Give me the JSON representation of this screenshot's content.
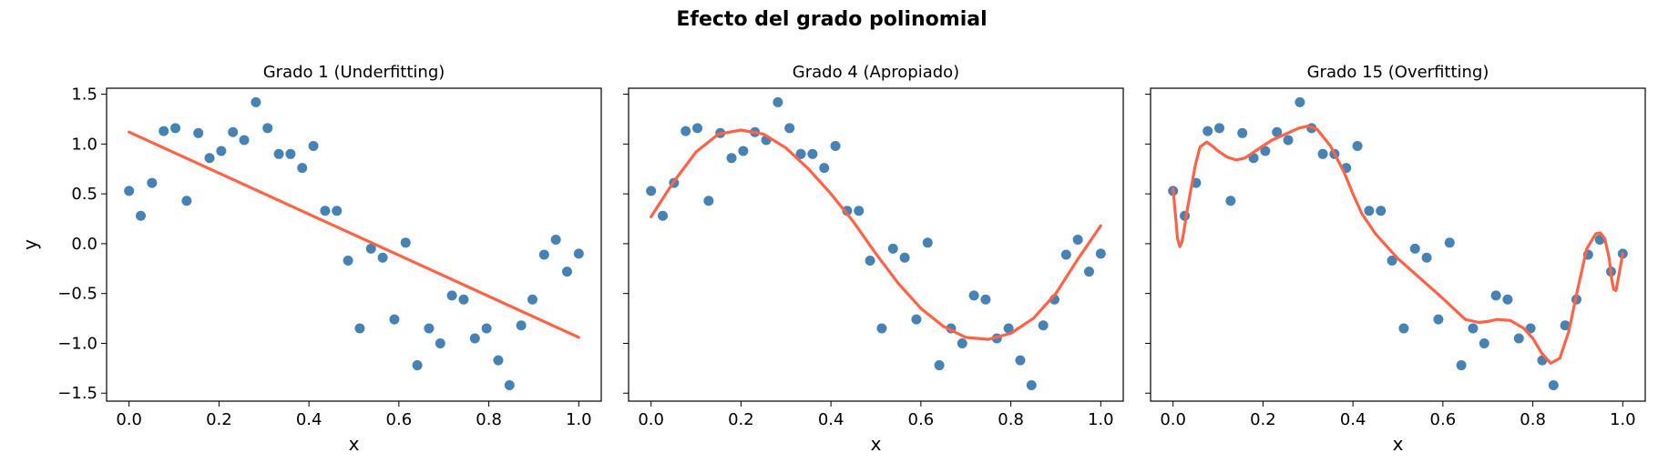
{
  "figure": {
    "suptitle": "Efecto del grado polinomial",
    "colors": {
      "points": "#4682b4",
      "curve": "#ff6347",
      "axes": "#000000"
    }
  },
  "chart_data": [
    {
      "type": "scatter",
      "title": "Grado 1 (Underfitting)",
      "xlabel": "x",
      "ylabel": "y",
      "xlim": [
        -0.05,
        1.05
      ],
      "ylim": [
        -1.58,
        1.56
      ],
      "xticks": [
        "0.0",
        "0.2",
        "0.4",
        "0.6",
        "0.8",
        "1.0"
      ],
      "yticks": [
        "−1.5",
        "−1.0",
        "−0.5",
        "0.0",
        "0.5",
        "1.0",
        "1.5"
      ],
      "grid": false,
      "points": {
        "x": [
          0.0,
          0.026,
          0.051,
          0.077,
          0.103,
          0.128,
          0.154,
          0.179,
          0.205,
          0.231,
          0.256,
          0.282,
          0.308,
          0.333,
          0.359,
          0.385,
          0.41,
          0.436,
          0.462,
          0.487,
          0.513,
          0.538,
          0.564,
          0.59,
          0.615,
          0.641,
          0.667,
          0.692,
          0.718,
          0.744,
          0.769,
          0.795,
          0.821,
          0.846,
          0.872,
          0.897,
          0.923,
          0.949,
          0.974,
          1.0
        ],
        "y": [
          0.53,
          0.28,
          0.61,
          1.13,
          1.16,
          0.43,
          1.11,
          0.86,
          0.93,
          1.12,
          1.04,
          1.42,
          1.16,
          0.9,
          0.9,
          0.76,
          0.98,
          0.33,
          0.33,
          -0.17,
          -0.85,
          -0.05,
          -0.14,
          -0.76,
          0.01,
          -1.22,
          -0.85,
          -1.0,
          -0.52,
          -0.56,
          -0.95,
          -0.85,
          -1.17,
          -1.42,
          -0.82,
          -0.56,
          -0.11,
          0.04,
          -0.28,
          -0.1
        ]
      },
      "fit_curve": {
        "x": [
          0.0,
          1.0
        ],
        "y": [
          1.12,
          -0.94
        ]
      }
    },
    {
      "type": "scatter",
      "title": "Grado 4 (Apropiado)",
      "xlabel": "x",
      "ylabel": "",
      "xlim": [
        -0.05,
        1.05
      ],
      "ylim": [
        -1.58,
        1.56
      ],
      "xticks": [
        "0.0",
        "0.2",
        "0.4",
        "0.6",
        "0.8",
        "1.0"
      ],
      "yticks": [],
      "grid": false,
      "points": {
        "x": [
          0.0,
          0.026,
          0.051,
          0.077,
          0.103,
          0.128,
          0.154,
          0.179,
          0.205,
          0.231,
          0.256,
          0.282,
          0.308,
          0.333,
          0.359,
          0.385,
          0.41,
          0.436,
          0.462,
          0.487,
          0.513,
          0.538,
          0.564,
          0.59,
          0.615,
          0.641,
          0.667,
          0.692,
          0.718,
          0.744,
          0.769,
          0.795,
          0.821,
          0.846,
          0.872,
          0.897,
          0.923,
          0.949,
          0.974,
          1.0
        ],
        "y": [
          0.53,
          0.28,
          0.61,
          1.13,
          1.16,
          0.43,
          1.11,
          0.86,
          0.93,
          1.12,
          1.04,
          1.42,
          1.16,
          0.9,
          0.9,
          0.76,
          0.98,
          0.33,
          0.33,
          -0.17,
          -0.85,
          -0.05,
          -0.14,
          -0.76,
          0.01,
          -1.22,
          -0.85,
          -1.0,
          -0.52,
          -0.56,
          -0.95,
          -0.85,
          -1.17,
          -1.42,
          -0.82,
          -0.56,
          -0.11,
          0.04,
          -0.28,
          -0.1
        ]
      },
      "fit_curve": {
        "x": [
          0.0,
          0.05,
          0.1,
          0.15,
          0.2,
          0.25,
          0.3,
          0.35,
          0.4,
          0.45,
          0.5,
          0.55,
          0.6,
          0.65,
          0.7,
          0.75,
          0.8,
          0.85,
          0.9,
          0.95,
          1.0
        ],
        "y": [
          0.27,
          0.62,
          0.92,
          1.1,
          1.14,
          1.1,
          0.96,
          0.75,
          0.5,
          0.22,
          -0.1,
          -0.4,
          -0.65,
          -0.83,
          -0.94,
          -0.96,
          -0.9,
          -0.75,
          -0.5,
          -0.15,
          0.18
        ]
      }
    },
    {
      "type": "scatter",
      "title": "Grado 15 (Overfitting)",
      "xlabel": "x",
      "ylabel": "",
      "xlim": [
        -0.05,
        1.05
      ],
      "ylim": [
        -1.58,
        1.56
      ],
      "xticks": [
        "0.0",
        "0.2",
        "0.4",
        "0.6",
        "0.8",
        "1.0"
      ],
      "yticks": [],
      "grid": false,
      "points": {
        "x": [
          0.0,
          0.026,
          0.051,
          0.077,
          0.103,
          0.128,
          0.154,
          0.179,
          0.205,
          0.231,
          0.256,
          0.282,
          0.308,
          0.333,
          0.359,
          0.385,
          0.41,
          0.436,
          0.462,
          0.487,
          0.513,
          0.538,
          0.564,
          0.59,
          0.615,
          0.641,
          0.667,
          0.692,
          0.718,
          0.744,
          0.769,
          0.795,
          0.821,
          0.846,
          0.872,
          0.897,
          0.923,
          0.949,
          0.974,
          1.0
        ],
        "y": [
          0.53,
          0.28,
          0.61,
          1.13,
          1.16,
          0.43,
          1.11,
          0.86,
          0.93,
          1.12,
          1.04,
          1.42,
          1.16,
          0.9,
          0.9,
          0.76,
          0.98,
          0.33,
          0.33,
          -0.17,
          -0.85,
          -0.05,
          -0.14,
          -0.76,
          0.01,
          -1.22,
          -0.85,
          -1.0,
          -0.52,
          -0.56,
          -0.95,
          -0.85,
          -1.17,
          -1.42,
          -0.82,
          -0.56,
          -0.11,
          0.04,
          -0.28,
          -0.1
        ]
      },
      "fit_curve": {
        "x": [
          0.0,
          0.005,
          0.01,
          0.015,
          0.02,
          0.025,
          0.03,
          0.04,
          0.05,
          0.06,
          0.075,
          0.09,
          0.1,
          0.12,
          0.14,
          0.16,
          0.18,
          0.2,
          0.22,
          0.25,
          0.28,
          0.3,
          0.32,
          0.35,
          0.38,
          0.4,
          0.42,
          0.45,
          0.48,
          0.5,
          0.55,
          0.6,
          0.65,
          0.68,
          0.7,
          0.72,
          0.75,
          0.78,
          0.8,
          0.82,
          0.84,
          0.86,
          0.88,
          0.9,
          0.92,
          0.94,
          0.95,
          0.96,
          0.97,
          0.975,
          0.98,
          0.985,
          0.99,
          1.0
        ],
        "y": [
          0.55,
          0.3,
          0.05,
          -0.03,
          0.02,
          0.15,
          0.3,
          0.55,
          0.8,
          0.97,
          1.02,
          0.97,
          0.93,
          0.87,
          0.84,
          0.86,
          0.92,
          0.98,
          1.04,
          1.1,
          1.16,
          1.18,
          1.15,
          0.98,
          0.72,
          0.5,
          0.3,
          0.1,
          -0.05,
          -0.15,
          -0.35,
          -0.55,
          -0.76,
          -0.79,
          -0.78,
          -0.76,
          -0.77,
          -0.85,
          -0.95,
          -1.1,
          -1.2,
          -1.15,
          -0.88,
          -0.45,
          -0.05,
          0.1,
          0.11,
          0.05,
          -0.15,
          -0.35,
          -0.46,
          -0.47,
          -0.35,
          -0.1
        ]
      }
    }
  ]
}
